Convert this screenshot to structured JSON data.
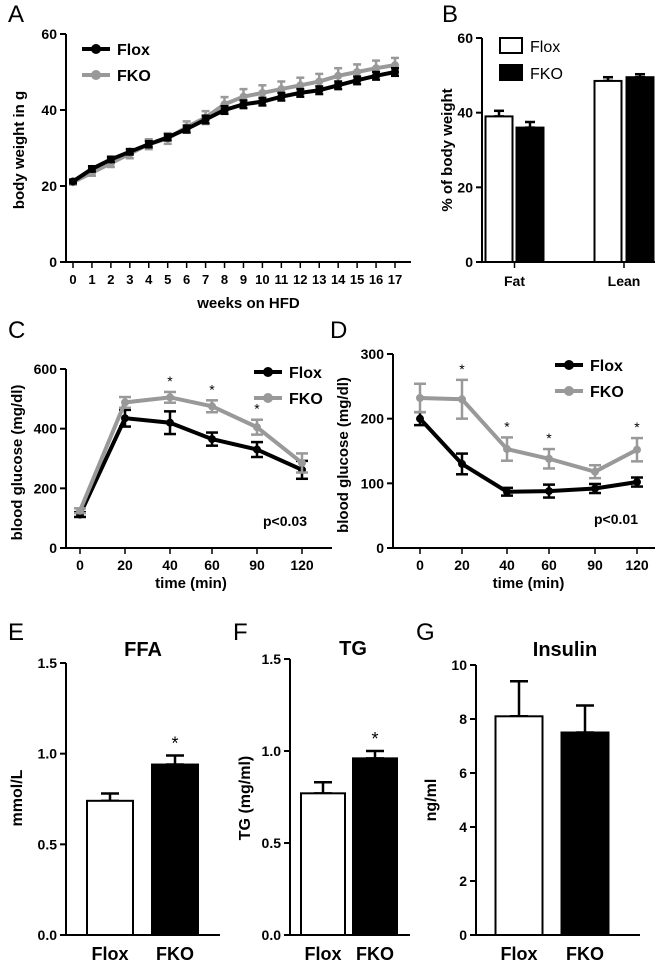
{
  "chart_data": [
    {
      "panel": "A",
      "type": "line",
      "title": "",
      "xlabel": "weeks on HFD",
      "ylabel": "body weight in g",
      "x": [
        0,
        1,
        2,
        3,
        4,
        5,
        6,
        7,
        8,
        9,
        10,
        11,
        12,
        13,
        14,
        15,
        16,
        17
      ],
      "ylim": [
        0,
        60
      ],
      "yticks": [
        0,
        20,
        40,
        60
      ],
      "legend": "top-left",
      "series": [
        {
          "name": "Flox",
          "color": "#000000",
          "values": [
            21.2,
            24.5,
            27,
            29,
            31,
            32.8,
            35,
            37.5,
            40,
            41.5,
            42.2,
            43.5,
            44.5,
            45.2,
            46.5,
            47.8,
            49,
            50
          ],
          "errors": [
            0.5,
            0.7,
            0.7,
            0.7,
            0.8,
            0.8,
            0.9,
            1,
            1,
            1,
            1,
            1,
            1,
            1,
            1,
            1,
            1,
            1
          ]
        },
        {
          "name": "FKO",
          "color": "#999999",
          "values": [
            21,
            23.5,
            26,
            28.5,
            31,
            32.5,
            35.5,
            38,
            41.5,
            43.5,
            44.5,
            45.5,
            46.5,
            47.5,
            49,
            50,
            51,
            51.8
          ],
          "errors": [
            0.6,
            0.8,
            1,
            1.2,
            1.3,
            1.4,
            1.5,
            1.7,
            1.9,
            2,
            2,
            2,
            2,
            2,
            2,
            2,
            2,
            1.9
          ]
        }
      ]
    },
    {
      "panel": "B",
      "type": "bar",
      "xlabel": "",
      "ylabel": "% of body weight",
      "categories": [
        "Fat",
        "Lean"
      ],
      "ylim": [
        0,
        60
      ],
      "yticks": [
        0,
        20,
        40,
        60
      ],
      "legend": "top-left",
      "series": [
        {
          "name": "Flox",
          "fill": "#ffffff",
          "values": [
            39,
            48.5
          ],
          "errors": [
            1.5,
            1
          ]
        },
        {
          "name": "FKO",
          "fill": "#000000",
          "values": [
            36,
            49.5
          ],
          "errors": [
            1.5,
            0.8
          ]
        }
      ]
    },
    {
      "panel": "C",
      "type": "line",
      "xlabel": "time (min)",
      "ylabel": "blood glucose (mg/dl)",
      "categories": [
        "0",
        "20",
        "40",
        "60",
        "90",
        "120"
      ],
      "ylim": [
        0,
        600
      ],
      "yticks": [
        0,
        200,
        400,
        600
      ],
      "legend": "top-right",
      "annotation": "p<0.03",
      "significance": [
        "",
        "",
        "*",
        "*",
        "*",
        ""
      ],
      "series": [
        {
          "name": "Flox",
          "color": "#000000",
          "values": [
            112,
            435,
            420,
            365,
            330,
            262
          ],
          "errors": [
            8,
            28,
            38,
            22,
            25,
            30
          ]
        },
        {
          "name": "FKO",
          "color": "#999999",
          "values": [
            125,
            488,
            505,
            475,
            405,
            285
          ],
          "errors": [
            8,
            18,
            18,
            20,
            25,
            32
          ]
        }
      ]
    },
    {
      "panel": "D",
      "type": "line",
      "xlabel": "time (min)",
      "ylabel": "blood glucose (mg/dl)",
      "categories": [
        "0",
        "20",
        "40",
        "60",
        "90",
        "120"
      ],
      "ylim": [
        0,
        300
      ],
      "yticks": [
        0,
        100,
        200,
        300
      ],
      "legend": "top-right",
      "annotation": "p<0.01",
      "significance": [
        "",
        "*",
        "*",
        "*",
        "",
        "*"
      ],
      "series": [
        {
          "name": "Flox",
          "color": "#000000",
          "values": [
            200,
            130,
            87,
            88,
            92,
            102
          ],
          "errors": [
            10,
            16,
            6,
            10,
            7,
            7
          ]
        },
        {
          "name": "FKO",
          "color": "#999999",
          "values": [
            232,
            230,
            153,
            138,
            118,
            152
          ],
          "errors": [
            22,
            30,
            18,
            15,
            10,
            18
          ]
        }
      ]
    },
    {
      "panel": "E",
      "type": "bar",
      "title": "FFA",
      "xlabel": "",
      "ylabel": "mmol/L",
      "categories": [
        "Flox",
        "FKO"
      ],
      "values": [
        0.74,
        0.94
      ],
      "errors": [
        0.04,
        0.05
      ],
      "fills": [
        "#ffffff",
        "#000000"
      ],
      "significance": [
        "",
        "*"
      ],
      "ylim": [
        0,
        1.5
      ],
      "yticks": [
        "0.0",
        "0.5",
        "1.0",
        "1.5"
      ]
    },
    {
      "panel": "F",
      "type": "bar",
      "title": "TG",
      "xlabel": "",
      "ylabel": "TG (mg/ml)",
      "categories": [
        "Flox",
        "FKO"
      ],
      "values": [
        0.77,
        0.96
      ],
      "errors": [
        0.06,
        0.04
      ],
      "fills": [
        "#ffffff",
        "#000000"
      ],
      "significance": [
        "",
        "*"
      ],
      "ylim": [
        0,
        1.5
      ],
      "yticks": [
        "0.0",
        "0.5",
        "1.0",
        "1.5"
      ]
    },
    {
      "panel": "G",
      "type": "bar",
      "title": "Insulin",
      "xlabel": "",
      "ylabel": "ng/ml",
      "categories": [
        "Flox",
        "FKO"
      ],
      "values": [
        8.1,
        7.5
      ],
      "errors": [
        1.3,
        1.0
      ],
      "fills": [
        "#ffffff",
        "#000000"
      ],
      "significance": [
        "",
        ""
      ],
      "ylim": [
        0,
        10
      ],
      "yticks": [
        "0",
        "2",
        "4",
        "6",
        "8",
        "10"
      ]
    }
  ]
}
